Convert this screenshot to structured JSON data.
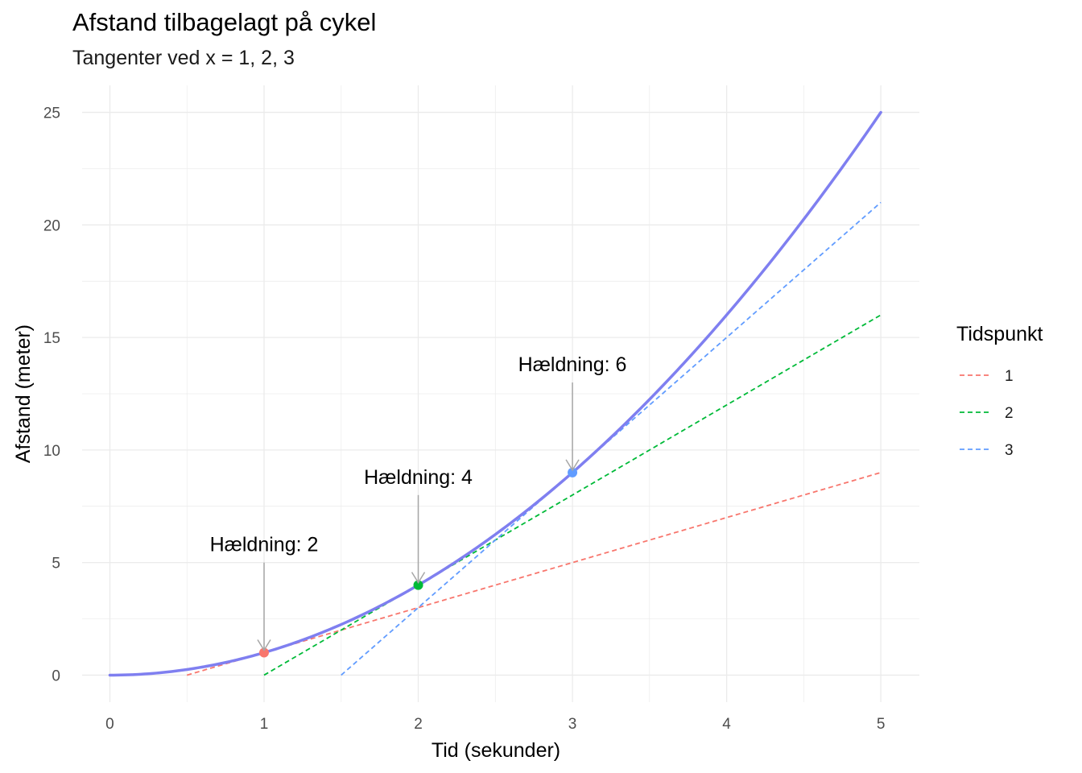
{
  "chart_data": {
    "type": "line",
    "title": "Afstand tilbagelagt på cykel",
    "subtitle": "Tangenter ved x = 1, 2, 3",
    "xlabel": "Tid (sekunder)",
    "ylabel": "Afstand (meter)",
    "xlim": [
      -0.18,
      5.25
    ],
    "ylim": [
      -1.2,
      26.2
    ],
    "x_ticks": [
      "0",
      "1",
      "2",
      "3",
      "4",
      "5"
    ],
    "y_ticks": [
      "0",
      "5",
      "10",
      "15",
      "20",
      "25"
    ],
    "grid": true,
    "curve": {
      "function": "y = x^2",
      "x": [
        0,
        0.25,
        0.5,
        0.75,
        1,
        1.25,
        1.5,
        1.75,
        2,
        2.25,
        2.5,
        2.75,
        3,
        3.25,
        3.5,
        3.75,
        4,
        4.25,
        4.5,
        4.75,
        5
      ],
      "y": [
        0,
        0.0625,
        0.25,
        0.5625,
        1,
        1.5625,
        2.25,
        3.0625,
        4,
        5.0625,
        6.25,
        7.5625,
        9,
        10.5625,
        12.25,
        14.0625,
        16,
        18.0625,
        20.25,
        22.5625,
        25
      ],
      "color": "#7f7ff0"
    },
    "legend": {
      "title": "Tidspunkt",
      "position": "right"
    },
    "tangents": [
      {
        "name": "1",
        "x0": 1,
        "y0": 1,
        "slope": 2,
        "x_range": [
          0.5,
          5
        ],
        "color": "#f8766d",
        "annotation": "Hældning: 2"
      },
      {
        "name": "2",
        "x0": 2,
        "y0": 4,
        "slope": 4,
        "x_range": [
          1,
          5
        ],
        "color": "#00ba38",
        "annotation": "Hældning: 4"
      },
      {
        "name": "3",
        "x0": 3,
        "y0": 9,
        "slope": 6,
        "x_range": [
          1.5,
          5
        ],
        "color": "#619cff",
        "annotation": "Hældning: 6"
      }
    ]
  }
}
